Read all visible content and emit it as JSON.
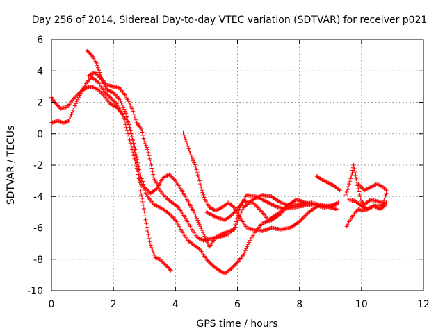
{
  "chart_data": {
    "type": "scatter",
    "title": "Day 256 of 2014, Sidereal Day-to-day VTEC variation (SDTVAR) for receiver p021",
    "xlabel": "GPS time / hours",
    "ylabel": "SDTVAR / TECUs",
    "xlim": [
      0,
      12
    ],
    "ylim": [
      -10,
      6
    ],
    "xticks": [
      "0",
      "2",
      "4",
      "6",
      "8",
      "10",
      "12"
    ],
    "yticks": [
      "-10",
      "-8",
      "-6",
      "-4",
      "-2",
      "0",
      "2",
      "4",
      "6"
    ],
    "grid": true,
    "marker": "+",
    "color": "#ff0000",
    "series": [
      {
        "values": [
          [
            1.15,
            5.3
          ],
          [
            1.3,
            5.0
          ],
          [
            1.45,
            4.5
          ],
          [
            1.55,
            3.9
          ],
          [
            1.65,
            3.3
          ],
          [
            1.8,
            2.8
          ],
          [
            2.0,
            2.6
          ],
          [
            2.2,
            2.2
          ],
          [
            2.4,
            1.3
          ],
          [
            2.55,
            0.2
          ],
          [
            2.7,
            -1.0
          ],
          [
            2.85,
            -2.5
          ],
          [
            3.0,
            -3.4
          ],
          [
            3.2,
            -3.8
          ],
          [
            3.4,
            -3.5
          ],
          [
            3.6,
            -2.8
          ],
          [
            3.8,
            -2.6
          ],
          [
            4.0,
            -3.0
          ],
          [
            4.2,
            -3.6
          ],
          [
            4.4,
            -4.3
          ],
          [
            4.6,
            -5.0
          ],
          [
            4.8,
            -5.9
          ],
          [
            5.0,
            -6.8
          ],
          [
            5.1,
            -7.2
          ],
          [
            5.3,
            -6.6
          ],
          [
            5.6,
            -6.3
          ],
          [
            5.9,
            -6.1
          ],
          [
            6.2,
            -4.7
          ],
          [
            6.5,
            -4.2
          ],
          [
            6.8,
            -3.9
          ],
          [
            7.1,
            -4.0
          ],
          [
            7.4,
            -4.4
          ],
          [
            7.7,
            -4.6
          ],
          [
            8.0,
            -4.5
          ],
          [
            8.4,
            -4.4
          ],
          [
            8.8,
            -4.6
          ],
          [
            9.2,
            -4.8
          ]
        ]
      },
      {
        "values": [
          [
            0.0,
            2.3
          ],
          [
            0.15,
            1.9
          ],
          [
            0.3,
            1.6
          ],
          [
            0.5,
            1.7
          ],
          [
            0.7,
            2.2
          ],
          [
            0.9,
            2.6
          ],
          [
            1.1,
            2.9
          ],
          [
            1.3,
            3.0
          ],
          [
            1.5,
            2.8
          ],
          [
            1.7,
            2.4
          ],
          [
            1.9,
            1.9
          ],
          [
            2.1,
            1.7
          ],
          [
            2.3,
            1.2
          ],
          [
            2.5,
            0.6
          ],
          [
            2.6,
            -0.2
          ],
          [
            2.7,
            -1.3
          ],
          [
            2.8,
            -2.6
          ],
          [
            2.9,
            -3.9
          ],
          [
            3.0,
            -5.0
          ],
          [
            3.1,
            -6.2
          ],
          [
            3.2,
            -7.1
          ],
          [
            3.35,
            -7.9
          ],
          [
            3.5,
            -8.0
          ],
          [
            3.7,
            -8.4
          ],
          [
            3.85,
            -8.7
          ]
        ]
      },
      {
        "values": [
          [
            0.0,
            0.7
          ],
          [
            0.2,
            0.8
          ],
          [
            0.4,
            0.7
          ],
          [
            0.55,
            0.8
          ],
          [
            0.7,
            1.5
          ],
          [
            0.85,
            2.2
          ],
          [
            1.0,
            2.8
          ],
          [
            1.15,
            3.3
          ],
          [
            1.3,
            3.6
          ],
          [
            1.5,
            3.3
          ],
          [
            1.7,
            2.7
          ],
          [
            1.9,
            2.3
          ],
          [
            2.1,
            1.9
          ],
          [
            2.3,
            1.2
          ],
          [
            2.5,
            -0.2
          ],
          [
            2.7,
            -1.8
          ],
          [
            2.9,
            -3.2
          ],
          [
            3.1,
            -4.0
          ],
          [
            3.3,
            -4.5
          ],
          [
            3.6,
            -4.8
          ],
          [
            3.8,
            -5.1
          ],
          [
            4.0,
            -5.5
          ],
          [
            4.2,
            -6.2
          ],
          [
            4.4,
            -6.8
          ],
          [
            4.6,
            -7.1
          ],
          [
            4.8,
            -7.4
          ],
          [
            5.0,
            -8.0
          ],
          [
            5.2,
            -8.4
          ],
          [
            5.4,
            -8.7
          ],
          [
            5.6,
            -8.9
          ],
          [
            5.8,
            -8.6
          ],
          [
            6.0,
            -8.2
          ],
          [
            6.2,
            -7.7
          ],
          [
            6.4,
            -6.8
          ],
          [
            6.6,
            -6.2
          ],
          [
            6.8,
            -5.7
          ],
          [
            7.1,
            -5.5
          ],
          [
            7.4,
            -5.1
          ],
          [
            7.6,
            -4.6
          ]
        ]
      },
      {
        "values": [
          [
            1.2,
            3.7
          ],
          [
            1.4,
            3.9
          ],
          [
            1.6,
            3.5
          ],
          [
            1.8,
            3.1
          ],
          [
            2.0,
            3.0
          ],
          [
            2.2,
            2.9
          ],
          [
            2.4,
            2.4
          ],
          [
            2.6,
            1.6
          ],
          [
            2.75,
            0.7
          ],
          [
            2.9,
            0.3
          ],
          [
            3.0,
            -0.5
          ],
          [
            3.1,
            -1.0
          ],
          [
            3.2,
            -1.8
          ],
          [
            3.3,
            -2.8
          ],
          [
            3.5,
            -3.6
          ],
          [
            3.7,
            -4.1
          ],
          [
            3.9,
            -4.4
          ],
          [
            4.1,
            -4.7
          ],
          [
            4.3,
            -5.3
          ],
          [
            4.5,
            -6.0
          ],
          [
            4.7,
            -6.6
          ],
          [
            4.9,
            -6.8
          ],
          [
            5.1,
            -6.7
          ],
          [
            5.4,
            -6.6
          ],
          [
            5.7,
            -6.4
          ],
          [
            5.9,
            -6.0
          ],
          [
            6.1,
            -4.6
          ],
          [
            6.3,
            -3.9
          ],
          [
            6.6,
            -4.0
          ],
          [
            6.9,
            -4.3
          ],
          [
            7.2,
            -4.6
          ],
          [
            7.5,
            -4.8
          ],
          [
            7.8,
            -4.7
          ],
          [
            8.1,
            -4.6
          ],
          [
            8.4,
            -4.5
          ],
          [
            8.8,
            -4.7
          ],
          [
            9.2,
            -4.5
          ]
        ]
      },
      {
        "values": [
          [
            4.25,
            0.05
          ],
          [
            4.35,
            -0.5
          ],
          [
            4.45,
            -1.1
          ],
          [
            4.55,
            -1.6
          ],
          [
            4.65,
            -2.1
          ],
          [
            4.75,
            -2.8
          ],
          [
            4.85,
            -3.6
          ],
          [
            4.95,
            -4.2
          ],
          [
            5.1,
            -4.7
          ],
          [
            5.3,
            -4.9
          ],
          [
            5.5,
            -4.7
          ],
          [
            5.7,
            -4.4
          ],
          [
            5.9,
            -4.7
          ],
          [
            6.1,
            -5.4
          ],
          [
            6.3,
            -6.0
          ],
          [
            6.5,
            -6.1
          ],
          [
            6.8,
            -6.2
          ],
          [
            7.1,
            -6.0
          ],
          [
            7.4,
            -6.1
          ],
          [
            7.7,
            -6.0
          ],
          [
            8.0,
            -5.6
          ],
          [
            8.3,
            -5.0
          ],
          [
            8.6,
            -4.6
          ],
          [
            9.0,
            -4.6
          ],
          [
            9.25,
            -4.4
          ]
        ]
      },
      {
        "values": [
          [
            5.0,
            -5.0
          ],
          [
            5.3,
            -5.3
          ],
          [
            5.6,
            -5.5
          ],
          [
            5.8,
            -5.2
          ],
          [
            6.0,
            -4.8
          ],
          [
            6.2,
            -4.3
          ],
          [
            6.5,
            -4.4
          ],
          [
            6.8,
            -5.0
          ],
          [
            7.0,
            -5.5
          ],
          [
            7.3,
            -5.1
          ],
          [
            7.6,
            -4.6
          ],
          [
            7.9,
            -4.2
          ],
          [
            8.2,
            -4.4
          ],
          [
            8.5,
            -4.5
          ]
        ]
      },
      {
        "values": [
          [
            8.55,
            -2.7
          ],
          [
            8.7,
            -2.9
          ],
          [
            8.9,
            -3.1
          ],
          [
            9.1,
            -3.3
          ],
          [
            9.3,
            -3.6
          ]
        ]
      },
      {
        "values": [
          [
            9.5,
            -6.0
          ],
          [
            9.6,
            -5.6
          ],
          [
            9.7,
            -5.3
          ],
          [
            9.8,
            -5.0
          ],
          [
            9.9,
            -4.8
          ],
          [
            10.0,
            -4.9
          ],
          [
            10.2,
            -4.8
          ],
          [
            10.4,
            -4.6
          ],
          [
            10.6,
            -4.6
          ],
          [
            10.8,
            -4.4
          ]
        ]
      },
      {
        "values": [
          [
            9.5,
            -3.9
          ],
          [
            9.6,
            -3.2
          ],
          [
            9.7,
            -2.5
          ],
          [
            9.75,
            -2.0
          ],
          [
            9.85,
            -3.1
          ],
          [
            10.0,
            -4.3
          ],
          [
            10.1,
            -4.5
          ],
          [
            10.3,
            -4.2
          ],
          [
            10.5,
            -4.3
          ],
          [
            10.7,
            -4.4
          ],
          [
            10.8,
            -3.8
          ]
        ]
      },
      {
        "values": [
          [
            9.9,
            -3.2
          ],
          [
            10.1,
            -3.6
          ],
          [
            10.3,
            -3.4
          ],
          [
            10.5,
            -3.2
          ],
          [
            10.7,
            -3.4
          ],
          [
            10.8,
            -3.6
          ]
        ]
      },
      {
        "values": [
          [
            9.6,
            -4.2
          ],
          [
            9.8,
            -4.3
          ],
          [
            10.0,
            -4.6
          ],
          [
            10.2,
            -4.8
          ],
          [
            10.4,
            -4.6
          ],
          [
            10.6,
            -4.8
          ],
          [
            10.75,
            -4.6
          ]
        ]
      }
    ]
  }
}
